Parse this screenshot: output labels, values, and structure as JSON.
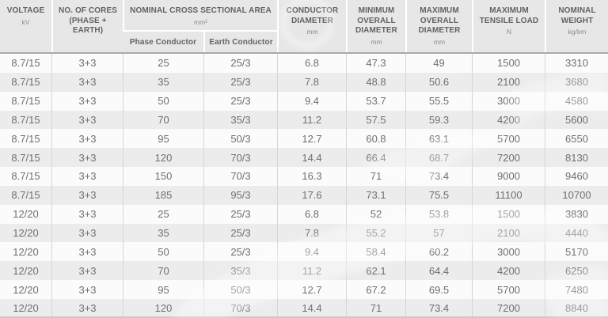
{
  "title": "Medium voltage cable specification table",
  "colors": {
    "header_bg": "#e7e7e7",
    "row_bg": "#fbfbfb",
    "row_alt_bg": "#ececec",
    "header_text": "#616265",
    "data_text": "#6e6f72",
    "header_rule": "#a9aaab",
    "cell_border": "#d5d5d6"
  },
  "header": {
    "voltage": {
      "label": "VOLTAGE",
      "unit": "kV"
    },
    "cores": {
      "label": "NO. OF CORES",
      "label2": "(PHASE + EARTH)"
    },
    "csa": {
      "label": "NOMINAL CROSS SECTIONAL AREA",
      "unit": "mm²"
    },
    "csa_sub": [
      "Phase Conductor",
      "Earth Conductor"
    ],
    "conductor_diameter": {
      "label": "CONDUCTOR DIAMETER",
      "unit": "mm"
    },
    "min_overall_diameter": {
      "label": "MINIMUM OVERALL DIAMETER",
      "unit": "mm"
    },
    "max_overall_diameter": {
      "label": "MAXIMUM OVERALL DIAMETER",
      "unit": "mm"
    },
    "max_tensile_load": {
      "label": "MAXIMUM TENSILE LOAD",
      "unit": "N"
    },
    "nominal_weight": {
      "label": "NOMINAL WEIGHT",
      "unit": "kg/km"
    }
  },
  "rows": [
    [
      "8.7/15",
      "3+3",
      "25",
      "25/3",
      "6.8",
      "47.3",
      "49",
      "1500",
      "3310"
    ],
    [
      "8.7/15",
      "3+3",
      "35",
      "25/3",
      "7.8",
      "48.8",
      "50.6",
      "2100",
      "3680"
    ],
    [
      "8.7/15",
      "3+3",
      "50",
      "25/3",
      "9.4",
      "53.7",
      "55.5",
      "3000",
      "4580"
    ],
    [
      "8.7/15",
      "3+3",
      "70",
      "35/3",
      "11.2",
      "57.5",
      "59.3",
      "4200",
      "5600"
    ],
    [
      "8.7/15",
      "3+3",
      "95",
      "50/3",
      "12.7",
      "60.8",
      "63.1",
      "5700",
      "6550"
    ],
    [
      "8.7/15",
      "3+3",
      "120",
      "70/3",
      "14.4",
      "66.4",
      "68.7",
      "7200",
      "8130"
    ],
    [
      "8.7/15",
      "3+3",
      "150",
      "70/3",
      "16.3",
      "71",
      "73.4",
      "9000",
      "9460"
    ],
    [
      "8.7/15",
      "3+3",
      "185",
      "95/3",
      "17.6",
      "73.1",
      "75.5",
      "11100",
      "10700"
    ],
    [
      "12/20",
      "3+3",
      "25",
      "25/3",
      "6.8",
      "52",
      "53.8",
      "1500",
      "3830"
    ],
    [
      "12/20",
      "3+3",
      "35",
      "25/3",
      "7.8",
      "55.2",
      "57",
      "2100",
      "4440"
    ],
    [
      "12/20",
      "3+3",
      "50",
      "25/3",
      "9.4",
      "58.4",
      "60.2",
      "3000",
      "5170"
    ],
    [
      "12/20",
      "3+3",
      "70",
      "35/3",
      "11.2",
      "62.1",
      "64.4",
      "4200",
      "6250"
    ],
    [
      "12/20",
      "3+3",
      "95",
      "50/3",
      "12.7",
      "67.2",
      "69.5",
      "5700",
      "7480"
    ],
    [
      "12/20",
      "3+3",
      "120",
      "70/3",
      "14.4",
      "71",
      "73.4",
      "7200",
      "8840"
    ]
  ]
}
